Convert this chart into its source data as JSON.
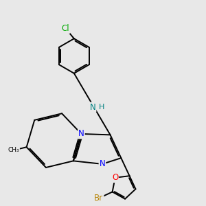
{
  "bg_color": "#e8e8e8",
  "bond_color": "#000000",
  "atom_colors": {
    "N": "#0000ff",
    "O": "#ff0000",
    "Br": "#b8860b",
    "Cl": "#00aa00",
    "NH": "#008080",
    "H": "#008080",
    "C": "#000000"
  },
  "lw": 1.4,
  "fs": 8.0
}
